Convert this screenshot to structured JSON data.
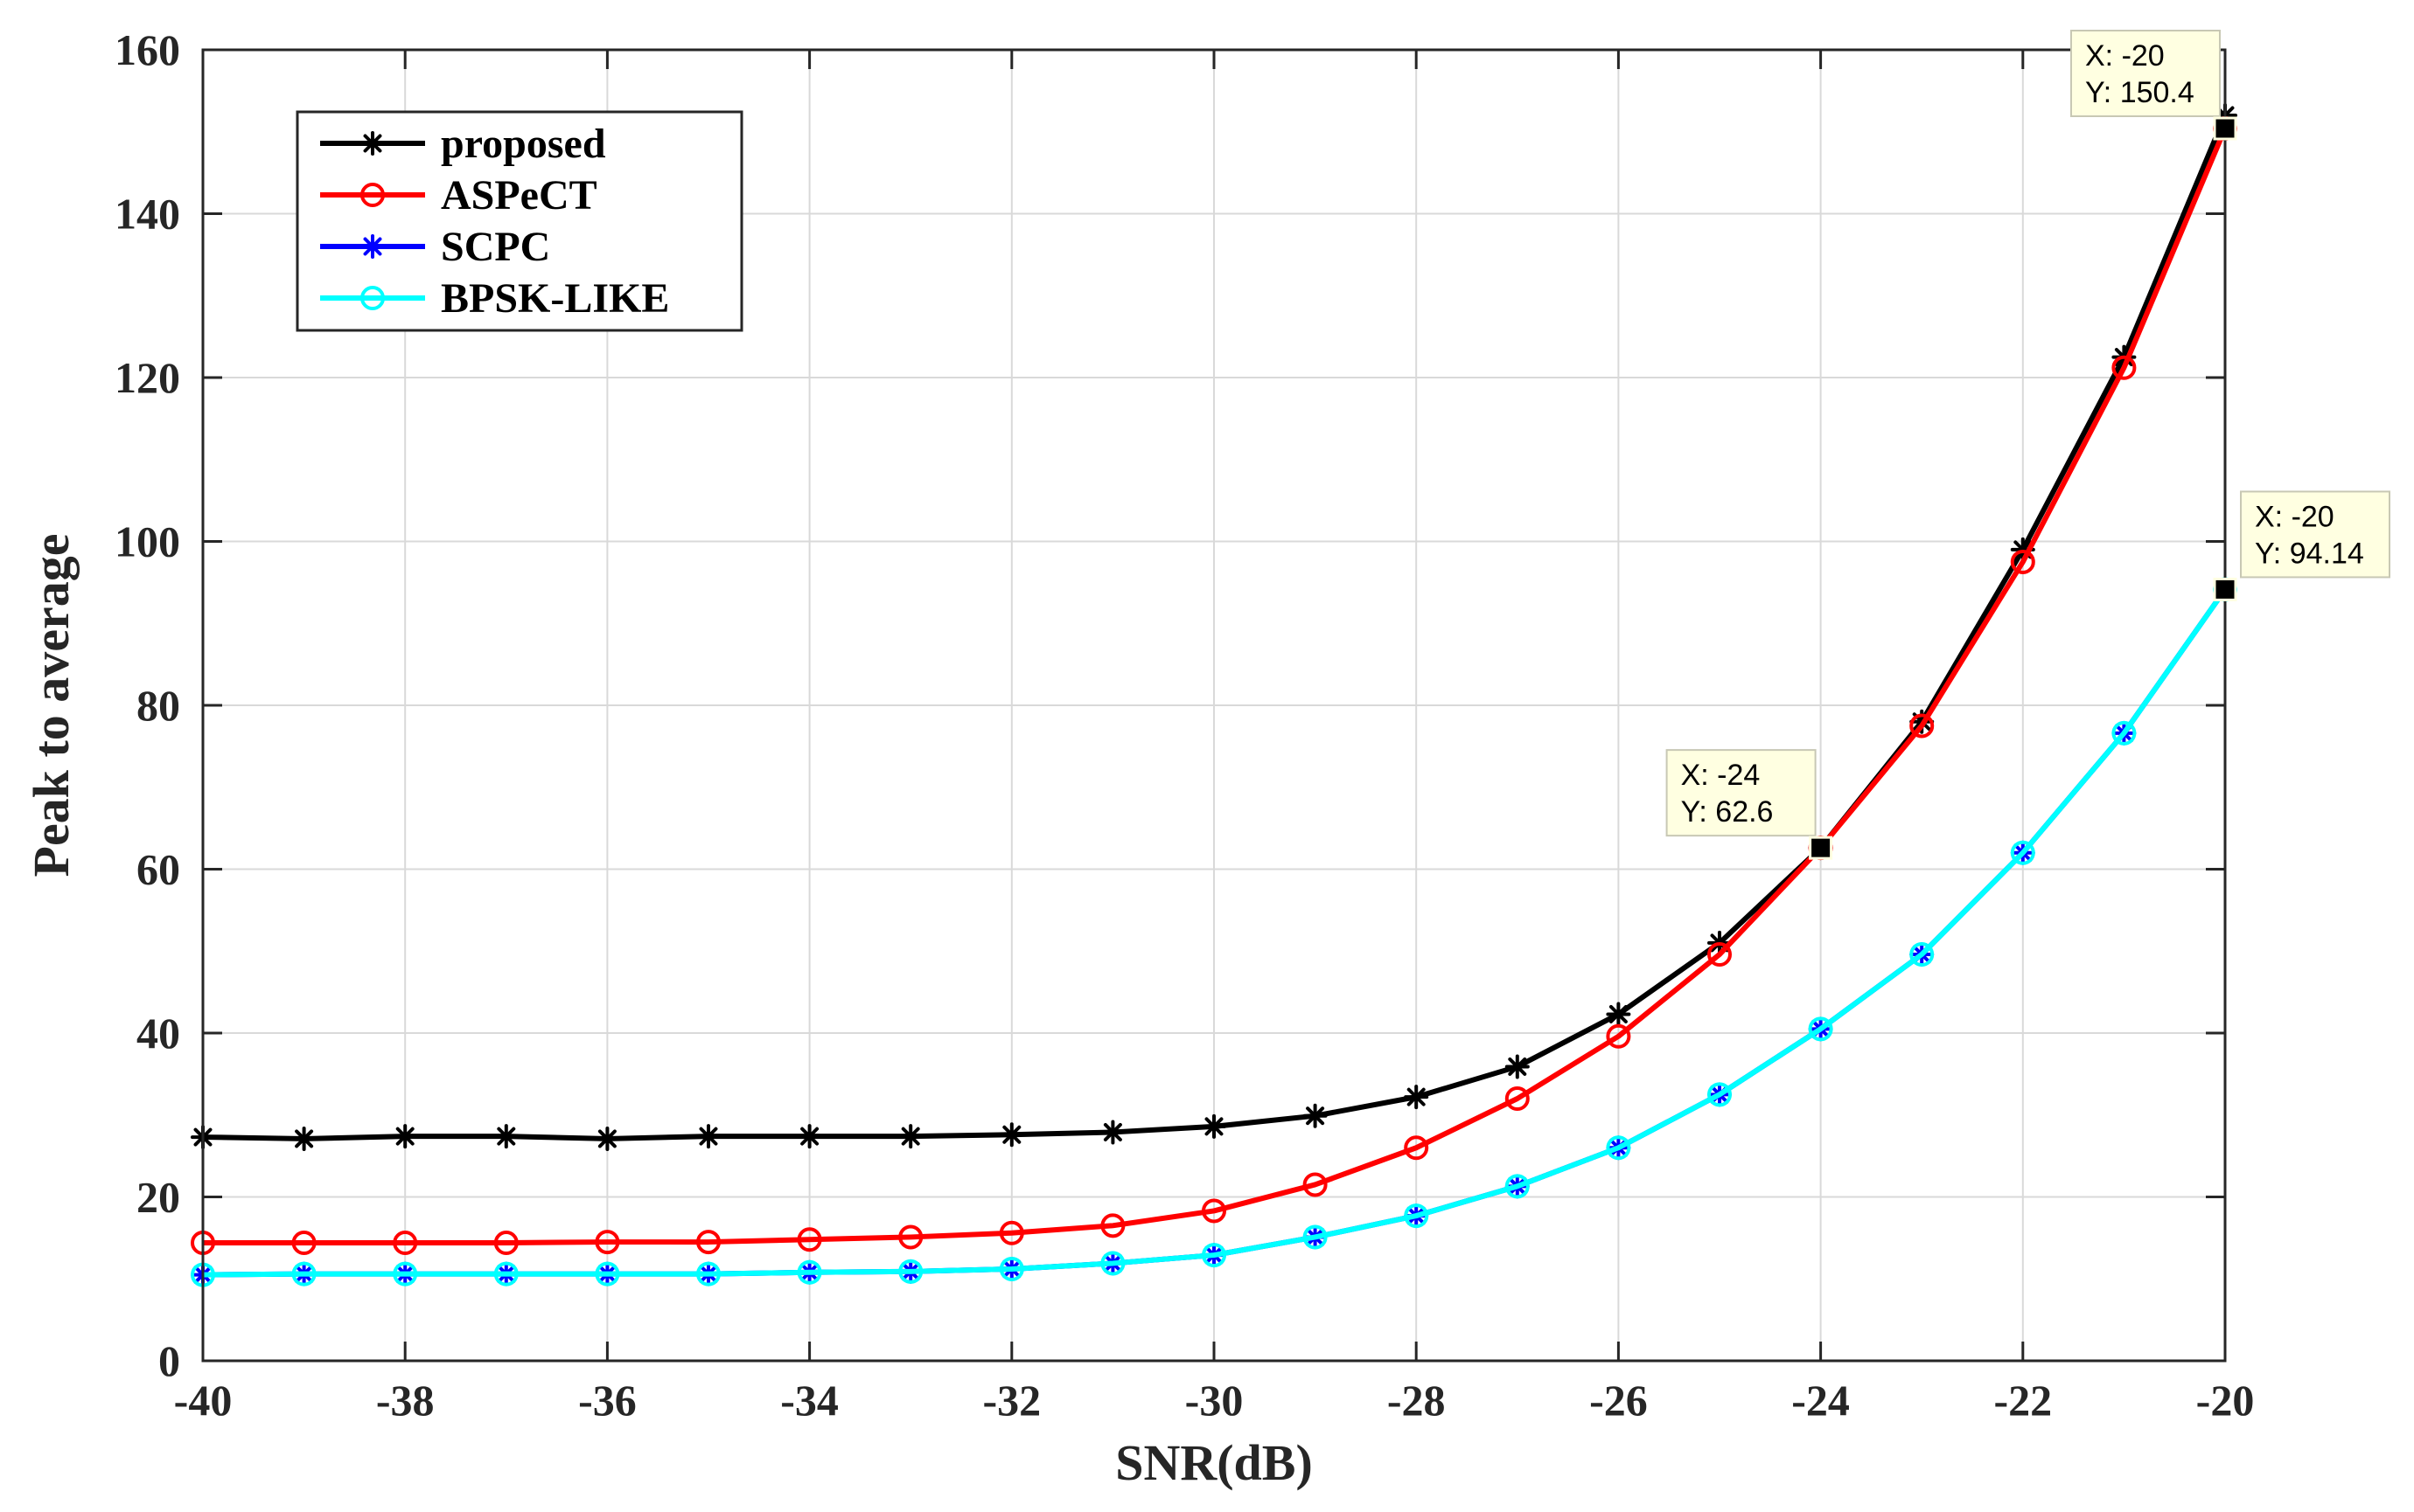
{
  "chart_data": {
    "type": "line",
    "xlabel": "SNR(dB)",
    "ylabel": "Peak to average",
    "xlim": [
      -40,
      -20
    ],
    "ylim": [
      0,
      160
    ],
    "xticks": [
      -40,
      -38,
      -36,
      -34,
      -32,
      -30,
      -28,
      -26,
      -24,
      -22,
      -20
    ],
    "yticks": [
      0,
      20,
      40,
      60,
      80,
      100,
      120,
      140,
      160
    ],
    "grid": true,
    "legend_position": "top-left",
    "x": [
      -40,
      -39,
      -38,
      -37,
      -36,
      -35,
      -34,
      -33,
      -32,
      -31,
      -30,
      -29,
      -28,
      -27,
      -26,
      -25,
      -24,
      -23,
      -22,
      -21,
      -20
    ],
    "series": [
      {
        "name": "proposed",
        "color": "#000000",
        "marker": "asterisk",
        "values": [
          27.3,
          27.1,
          27.4,
          27.4,
          27.1,
          27.4,
          27.4,
          27.4,
          27.6,
          27.9,
          28.6,
          29.9,
          32.2,
          35.9,
          42.3,
          51.0,
          62.6,
          78.0,
          99.0,
          122.5,
          152.0
        ]
      },
      {
        "name": "ASPeCT",
        "color": "#ff0000",
        "marker": "circle",
        "values": [
          14.4,
          14.4,
          14.4,
          14.4,
          14.5,
          14.5,
          14.8,
          15.1,
          15.6,
          16.5,
          18.3,
          21.5,
          26.0,
          32.0,
          39.6,
          49.6,
          62.6,
          77.5,
          97.5,
          121.2,
          150.4
        ]
      },
      {
        "name": "SCPC",
        "color": "#0000ff",
        "marker": "asterisk",
        "values": [
          10.5,
          10.6,
          10.6,
          10.6,
          10.6,
          10.6,
          10.8,
          10.9,
          11.2,
          11.9,
          12.9,
          15.1,
          17.7,
          21.3,
          26.0,
          32.5,
          40.5,
          49.6,
          62.0,
          76.6,
          94.14
        ]
      },
      {
        "name": "BPSK-LIKE",
        "color": "#00ffff",
        "marker": "circle",
        "values": [
          10.5,
          10.6,
          10.6,
          10.6,
          10.6,
          10.6,
          10.8,
          10.9,
          11.2,
          11.9,
          12.9,
          15.1,
          17.7,
          21.3,
          26.0,
          32.5,
          40.5,
          49.6,
          62.0,
          76.6,
          94.14
        ]
      }
    ],
    "datatips": [
      {
        "x": -20,
        "y": 150.4,
        "x_text": "X: -20",
        "y_text": "Y: 150.4",
        "box_side": "above-left"
      },
      {
        "x": -24,
        "y": 62.6,
        "x_text": "X: -24",
        "y_text": "Y: 62.6",
        "box_side": "above-left"
      },
      {
        "x": -20,
        "y": 94.14,
        "x_text": "X: -20",
        "y_text": "Y: 94.14",
        "box_side": "above-right"
      }
    ]
  }
}
